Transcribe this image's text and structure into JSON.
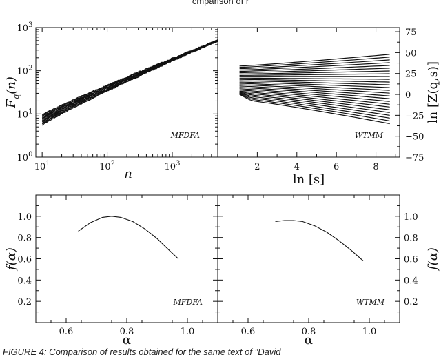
{
  "header_fragment": "cmparison of r",
  "caption": "FIGURE 4: Comparison of results obtained for the same text of \"David",
  "chart_data": [
    {
      "type": "line",
      "panel": "top-left",
      "xlabel": "n",
      "ylabel": "F_q(n)",
      "xscale": "log",
      "yscale": "log",
      "xlim": [
        8,
        5000
      ],
      "ylim": [
        1,
        1000
      ],
      "xticks": [
        {
          "value": 10,
          "base": "10",
          "exp": "1"
        },
        {
          "value": 100,
          "base": "10",
          "exp": "2"
        },
        {
          "value": 1000,
          "base": "10",
          "exp": "3"
        }
      ],
      "yticks": [
        {
          "value": 1,
          "base": "10",
          "exp": "0"
        },
        {
          "value": 10,
          "base": "10",
          "exp": "1"
        },
        {
          "value": 100,
          "base": "10",
          "exp": "2"
        },
        {
          "value": 1000,
          "base": "10",
          "exp": "3"
        }
      ],
      "annotation": "MFDFA",
      "series_band": {
        "n_start": 10,
        "n_end": 5000,
        "count": 14,
        "lower_at_start": 5.5,
        "upper_at_start": 9.5,
        "value_at_end": 500
      }
    },
    {
      "type": "line",
      "panel": "top-right",
      "xlabel": "ln [s]",
      "ylabel": "ln [Z(q,s)]",
      "xlim": [
        0,
        9.2
      ],
      "ylim": [
        -75,
        80
      ],
      "xticks": [
        2,
        4,
        6,
        8
      ],
      "yticks": [
        75,
        50,
        25,
        0,
        -25,
        -50,
        -75
      ],
      "ytick_labels": [
        "75",
        "50",
        "25",
        "0",
        "−25",
        "−50",
        "−75"
      ],
      "annotation": "WTMM",
      "series_fan": {
        "x_start": 1.1,
        "x_end": 8.7,
        "count": 26,
        "top_start": 34,
        "top_end": 48,
        "bottom_start": -6,
        "bottom_end": -35
      }
    },
    {
      "type": "line",
      "panel": "bottom-left",
      "xlabel": "α",
      "ylabel": "f(α)",
      "xlim": [
        0.5,
        1.1
      ],
      "ylim": [
        0,
        1.2
      ],
      "xticks": [
        0.6,
        0.8,
        1.0
      ],
      "xtick_labels": [
        "0.6",
        "0.8",
        "1.0"
      ],
      "yticks": [
        0.2,
        0.4,
        0.6,
        0.8,
        1.0
      ],
      "ytick_labels": [
        "0.2",
        "0.4",
        "0.6",
        "0.8",
        "1.0"
      ],
      "annotation": "MFDFA",
      "series": [
        {
          "x": [
            0.64,
            0.68,
            0.72,
            0.75,
            0.78,
            0.82,
            0.86,
            0.9,
            0.94,
            0.97
          ],
          "y": [
            0.86,
            0.94,
            0.99,
            1.0,
            0.99,
            0.95,
            0.88,
            0.79,
            0.68,
            0.6
          ]
        }
      ]
    },
    {
      "type": "line",
      "panel": "bottom-right",
      "xlabel": "α",
      "ylabel": "f(α)",
      "xlim": [
        0.5,
        1.1
      ],
      "ylim": [
        0,
        1.2
      ],
      "xticks": [
        0.6,
        0.8,
        1.0
      ],
      "xtick_labels": [
        "0.6",
        "0.8",
        "1.0"
      ],
      "yticks": [
        0.2,
        0.4,
        0.6,
        0.8,
        1.0
      ],
      "ytick_labels": [
        "0.2",
        "0.4",
        "0.6",
        "0.8",
        "1.0"
      ],
      "annotation": "WTMM",
      "series": [
        {
          "x": [
            0.69,
            0.72,
            0.75,
            0.78,
            0.82,
            0.86,
            0.9,
            0.94,
            0.98
          ],
          "y": [
            0.95,
            0.96,
            0.96,
            0.95,
            0.91,
            0.85,
            0.77,
            0.68,
            0.58
          ]
        }
      ]
    }
  ]
}
